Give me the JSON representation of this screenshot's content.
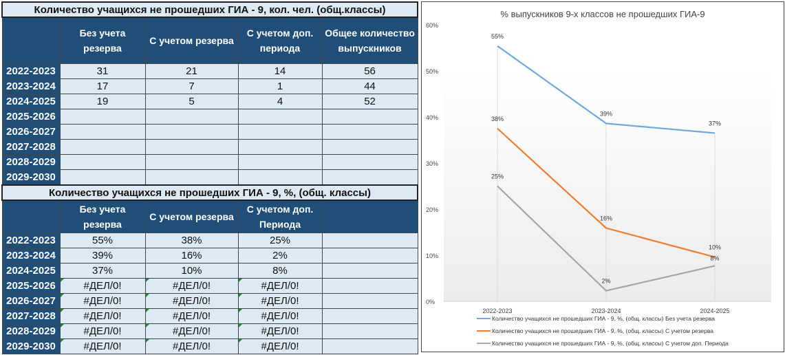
{
  "table_counts": {
    "title": "Количество учащихся не прошедших ГИА - 9, кол. чел. (общ.классы)",
    "headers": [
      "",
      "Без учета резерва",
      "С учетом резерва",
      "С учетом доп. периода",
      "Общее количество выпускников"
    ],
    "rows": [
      [
        "2022-2023",
        "31",
        "21",
        "14",
        "56"
      ],
      [
        "2023-2024",
        "17",
        "7",
        "1",
        "44"
      ],
      [
        "2024-2025",
        "19",
        "5",
        "4",
        "52"
      ],
      [
        "2025-2026",
        "",
        "",
        "",
        ""
      ],
      [
        "2026-2027",
        "",
        "",
        "",
        ""
      ],
      [
        "2027-2028",
        "",
        "",
        "",
        ""
      ],
      [
        "2028-2029",
        "",
        "",
        "",
        ""
      ],
      [
        "2029-2030",
        "",
        "",
        "",
        ""
      ]
    ]
  },
  "table_percent": {
    "title": "Количество учащихся не прошедших ГИА - 9, %, (общ. классы)",
    "headers": [
      "",
      "Без учета резерва",
      "С учетом резерва",
      "С учетом доп. Периода",
      ""
    ],
    "rows": [
      [
        "2022-2023",
        "55%",
        "38%",
        "25%",
        ""
      ],
      [
        "2023-2024",
        "39%",
        "16%",
        "2%",
        ""
      ],
      [
        "2024-2025",
        "37%",
        "10%",
        "8%",
        ""
      ],
      [
        "2025-2026",
        "#ДЕЛ/0!",
        "#ДЕЛ/0!",
        "#ДЕЛ/0!",
        ""
      ],
      [
        "2026-2027",
        "#ДЕЛ/0!",
        "#ДЕЛ/0!",
        "#ДЕЛ/0!",
        ""
      ],
      [
        "2027-2028",
        "#ДЕЛ/0!",
        "#ДЕЛ/0!",
        "#ДЕЛ/0!",
        ""
      ],
      [
        "2028-2029",
        "#ДЕЛ/0!",
        "#ДЕЛ/0!",
        "#ДЕЛ/0!",
        ""
      ],
      [
        "2029-2030",
        "#ДЕЛ/0!",
        "#ДЕЛ/0!",
        "#ДЕЛ/0!",
        ""
      ]
    ]
  },
  "chart_data": {
    "type": "line",
    "title": "% выпускников 9-х классов не прошедших ГИА-9",
    "categories": [
      "2022-2023",
      "2023-2024",
      "2024-2025"
    ],
    "ylim": [
      0,
      60
    ],
    "yticks": [
      "0%",
      "10%",
      "20%",
      "30%",
      "40%",
      "50%",
      "60%"
    ],
    "grid": "vertical",
    "legend": "bottom",
    "series": [
      {
        "name": "Количество учащихся не прошедших ГИА - 9, %, (общ. классы) Без учета резерва",
        "values": [
          55.4,
          38.6,
          36.5
        ],
        "labels": [
          "55%",
          "39%",
          "37%"
        ],
        "color": "#6fa8dc"
      },
      {
        "name": "Количество учащихся не прошедших ГИА - 9, %, (общ. классы) С учетом резерва",
        "values": [
          37.5,
          15.9,
          9.6
        ],
        "labels": [
          "38%",
          "16%",
          "10%"
        ],
        "color": "#ed7d31"
      },
      {
        "name": "Количество учащихся не прошедших ГИА - 9, %, (общ. классы) С учетом доп. Периода",
        "values": [
          25.0,
          2.3,
          7.7
        ],
        "labels": [
          "25%",
          "2%",
          "8%"
        ],
        "color": "#a5a5a5"
      }
    ]
  }
}
